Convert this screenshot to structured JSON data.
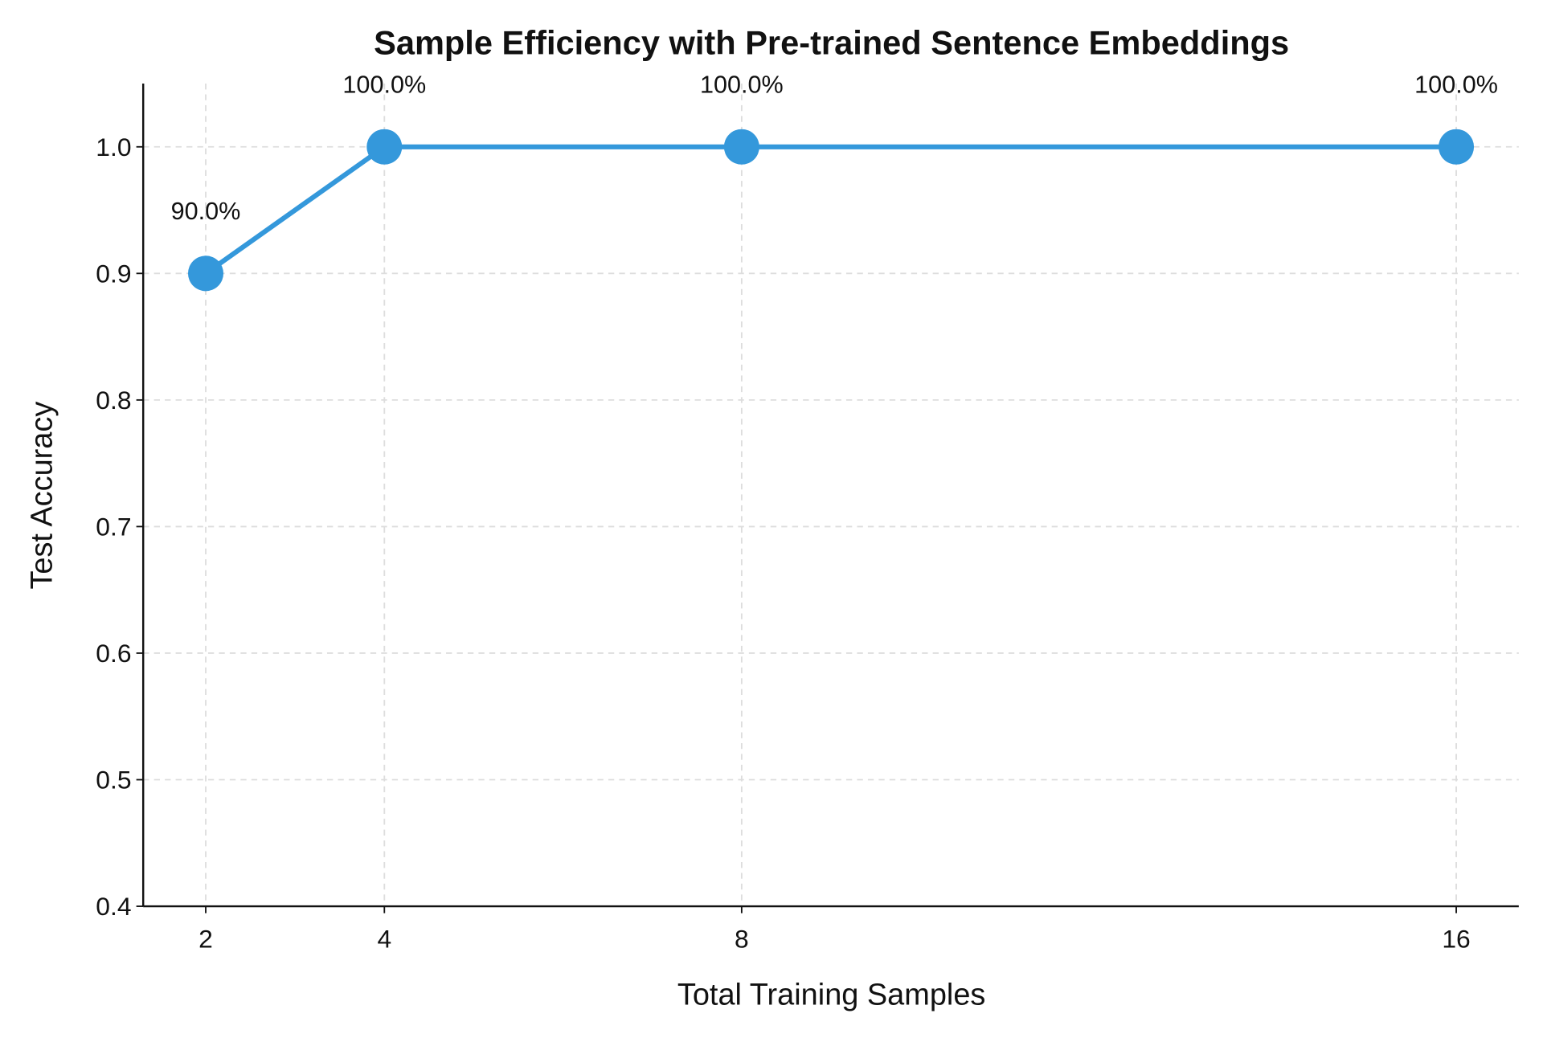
{
  "chart_data": {
    "type": "line",
    "title": "Sample Efficiency with Pre-trained Sentence Embeddings",
    "xlabel": "Total Training Samples",
    "ylabel": "Test Accuracy",
    "x": [
      2,
      4,
      8,
      16
    ],
    "series": [
      {
        "values": [
          0.9,
          1.0,
          1.0,
          1.0
        ]
      }
    ],
    "data_labels": [
      "90.0%",
      "100.0%",
      "100.0%",
      "100.0%"
    ],
    "xticks": [
      2,
      4,
      8,
      16
    ],
    "xtick_labels": [
      "2",
      "4",
      "8",
      "16"
    ],
    "yticks": [
      0.4,
      0.5,
      0.6,
      0.7,
      0.8,
      0.9,
      1.0
    ],
    "ytick_labels": [
      "0.4",
      "0.5",
      "0.6",
      "0.7",
      "0.8",
      "0.9",
      "1.0"
    ],
    "xlim": [
      1.3,
      16.7
    ],
    "ylim": [
      0.4,
      1.05
    ],
    "grid": true,
    "grid_style": "dashed",
    "line_color": "#3498db",
    "marker": "circle"
  }
}
